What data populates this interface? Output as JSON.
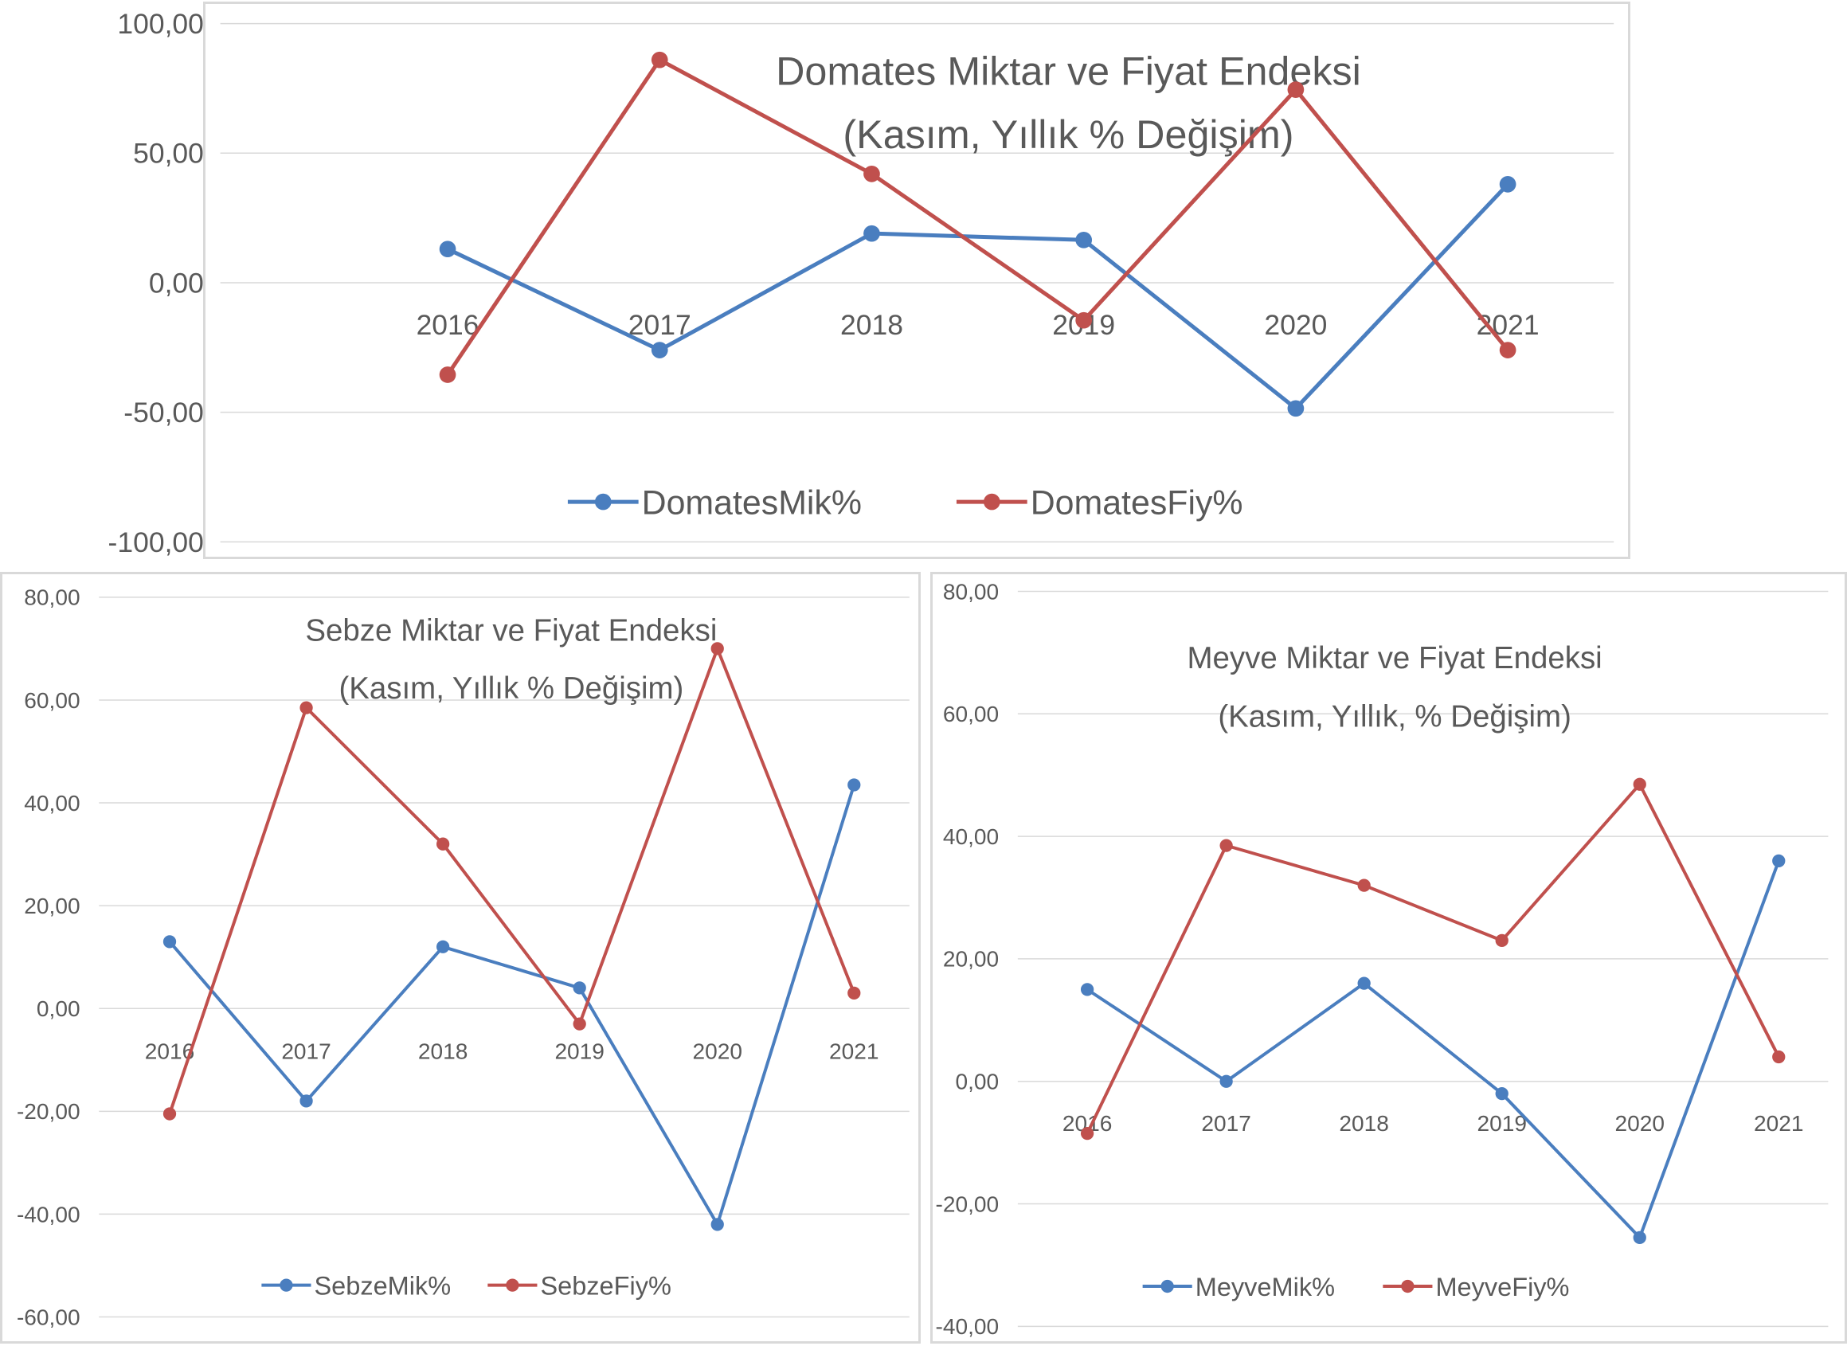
{
  "colors": {
    "mik": "#4a7ebf",
    "fiy": "#c0504d",
    "grid": "#d9d9d9",
    "text": "#595959"
  },
  "charts": [
    {
      "id": "top",
      "title_lines": [
        "Domates Miktar ve Fiyat Endeksi",
        "(Kasım, Yıllık % Değişim)"
      ],
      "y_ticks": [
        "100,00",
        "50,00",
        "0,00",
        "-50,00",
        "-100,00"
      ],
      "x_ticks": [
        "2016",
        "2017",
        "2018",
        "2019",
        "2020",
        "2021"
      ],
      "legend": [
        "DomatesMik%",
        "DomatesFiy%"
      ]
    },
    {
      "id": "left",
      "title_lines": [
        "Sebze  Miktar ve Fiyat Endeksi",
        "(Kasım,  Yıllık % Değişim)"
      ],
      "y_ticks": [
        "80,00",
        "60,00",
        "40,00",
        "20,00",
        "0,00",
        "-20,00",
        "-40,00",
        "-60,00"
      ],
      "x_ticks": [
        "2016",
        "2017",
        "2018",
        "2019",
        "2020",
        "2021"
      ],
      "legend": [
        "SebzeMik%",
        "SebzeFiy%"
      ]
    },
    {
      "id": "right",
      "title_lines": [
        "Meyve Miktar ve Fiyat Endeksi",
        "(Kasım, Yıllık, % Değişim)"
      ],
      "y_ticks": [
        "80,00",
        "60,00",
        "40,00",
        "20,00",
        "0,00",
        "-20,00",
        "-40,00"
      ],
      "x_ticks": [
        "2016",
        "2017",
        "2018",
        "2019",
        "2020",
        "2021"
      ],
      "legend": [
        "MeyveMik%",
        "MeyveFiy%"
      ]
    }
  ],
  "chart_data": [
    {
      "type": "line",
      "title": "Domates Miktar ve Fiyat Endeksi (Kasım, Yıllık % Değişim)",
      "x": [
        "2016",
        "2017",
        "2018",
        "2019",
        "2020",
        "2021"
      ],
      "series": [
        {
          "name": "DomatesMik%",
          "values": [
            13,
            -26,
            19,
            16.5,
            -48.5,
            38
          ]
        },
        {
          "name": "DomatesFiy%",
          "values": [
            -35.5,
            86,
            42,
            -14.5,
            74.5,
            -26
          ]
        }
      ],
      "ylim": [
        -100,
        100
      ],
      "legend": "bottom",
      "grid": true
    },
    {
      "type": "line",
      "title": "Sebze  Miktar ve Fiyat Endeksi (Kasım,  Yıllık % Değişim)",
      "x": [
        "2016",
        "2017",
        "2018",
        "2019",
        "2020",
        "2021"
      ],
      "series": [
        {
          "name": "SebzeMik%",
          "values": [
            13,
            -18,
            12,
            4,
            -42,
            43.5
          ]
        },
        {
          "name": "SebzeFiy%",
          "values": [
            -20.5,
            58.5,
            32,
            -3,
            70,
            3
          ]
        }
      ],
      "ylim": [
        -60,
        80
      ],
      "legend": "bottom",
      "grid": true
    },
    {
      "type": "line",
      "title": "Meyve Miktar ve Fiyat Endeksi (Kasım, Yıllık, % Değişim)",
      "x": [
        "2016",
        "2017",
        "2018",
        "2019",
        "2020",
        "2021"
      ],
      "series": [
        {
          "name": "MeyveMik%",
          "values": [
            15,
            0,
            16,
            -2,
            -25.5,
            36
          ]
        },
        {
          "name": "MeyveFiy%",
          "values": [
            -8.5,
            38.5,
            32,
            23,
            48.5,
            4
          ]
        }
      ],
      "ylim": [
        -40,
        80
      ],
      "legend": "bottom",
      "grid": true
    }
  ]
}
